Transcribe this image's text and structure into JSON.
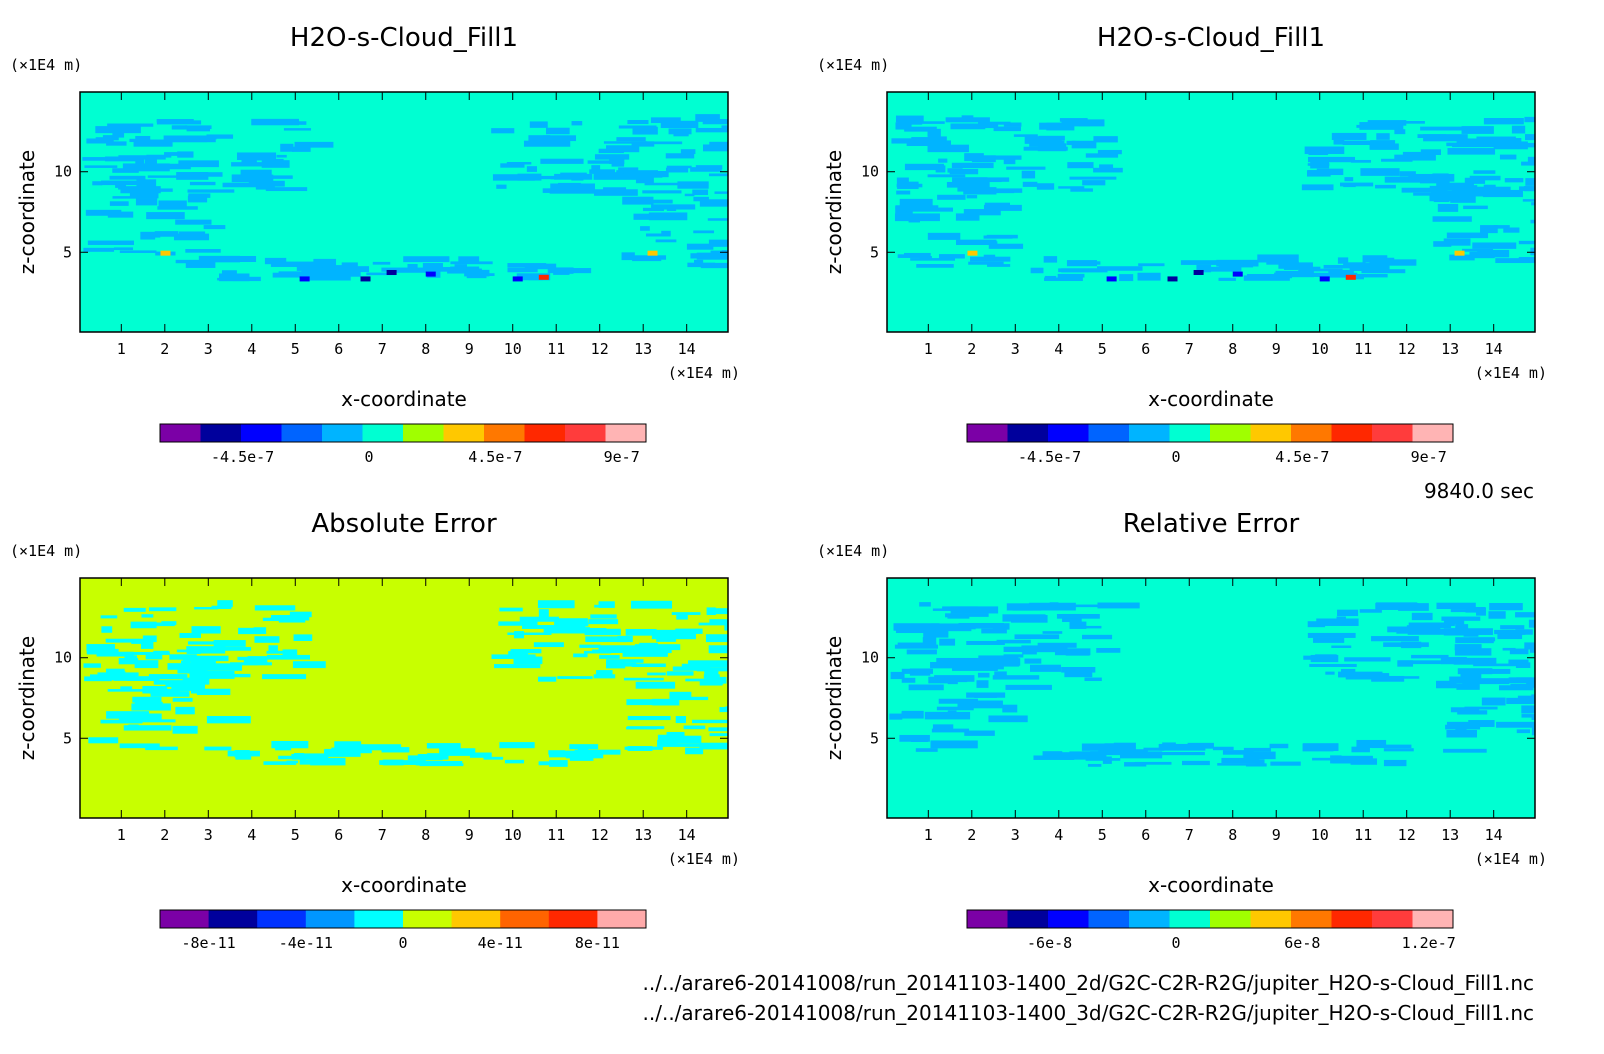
{
  "time_label": "9840.0 sec",
  "file_paths": [
    "../../arare6-20141008/run_20141103-1400_2d/G2C-C2R-R2G/jupiter_H2O-s-Cloud_Fill1.nc",
    "../../arare6-20141008/run_20141103-1400_3d/G2C-C2R-R2G/jupiter_H2O-s-Cloud_Fill1.nc"
  ],
  "chart_data": [
    {
      "type": "heatmap",
      "title": "H2O-s-Cloud_Fill1",
      "xlabel": "x-coordinate",
      "ylabel": "z-coordinate",
      "x_unit": "(×1E4 m)",
      "y_unit": "(×1E4 m)",
      "xlim": [
        0.05,
        14.95
      ],
      "ylim": [
        0.05,
        14.95
      ],
      "x_ticks": [
        "1",
        "2",
        "3",
        "4",
        "5",
        "6",
        "7",
        "8",
        "9",
        "10",
        "11",
        "12",
        "13",
        "14"
      ],
      "y_ticks": [
        "5",
        "10"
      ],
      "colorbar": {
        "colors": [
          "#7b00a6",
          "#00009c",
          "#0000ff",
          "#0064ff",
          "#00b4ff",
          "#00ffd2",
          "#a0ff00",
          "#ffc800",
          "#ff7800",
          "#ff2800",
          "#ff3c3c",
          "#ffb4b4"
        ],
        "tick_labels": [
          "-4.5e-7",
          "0",
          "4.5e-7",
          "9e-7"
        ]
      },
      "background_color": "#00ffd2",
      "feature_color": "#00b4ff"
    },
    {
      "type": "heatmap",
      "title": "H2O-s-Cloud_Fill1",
      "xlabel": "x-coordinate",
      "ylabel": "z-coordinate",
      "x_unit": "(×1E4 m)",
      "y_unit": "(×1E4 m)",
      "xlim": [
        0.05,
        14.95
      ],
      "ylim": [
        0.05,
        14.95
      ],
      "x_ticks": [
        "1",
        "2",
        "3",
        "4",
        "5",
        "6",
        "7",
        "8",
        "9",
        "10",
        "11",
        "12",
        "13",
        "14"
      ],
      "y_ticks": [
        "5",
        "10"
      ],
      "colorbar": {
        "colors": [
          "#7b00a6",
          "#00009c",
          "#0000ff",
          "#0064ff",
          "#00b4ff",
          "#00ffd2",
          "#a0ff00",
          "#ffc800",
          "#ff7800",
          "#ff2800",
          "#ff3c3c",
          "#ffb4b4"
        ],
        "tick_labels": [
          "-4.5e-7",
          "0",
          "4.5e-7",
          "9e-7"
        ]
      },
      "background_color": "#00ffd2",
      "feature_color": "#00b4ff"
    },
    {
      "type": "heatmap",
      "title": "Absolute Error",
      "xlabel": "x-coordinate",
      "ylabel": "z-coordinate",
      "x_unit": "(×1E4 m)",
      "y_unit": "(×1E4 m)",
      "xlim": [
        0.05,
        14.95
      ],
      "ylim": [
        0.05,
        14.95
      ],
      "x_ticks": [
        "1",
        "2",
        "3",
        "4",
        "5",
        "6",
        "7",
        "8",
        "9",
        "10",
        "11",
        "12",
        "13",
        "14"
      ],
      "y_ticks": [
        "5",
        "10"
      ],
      "colorbar": {
        "colors": [
          "#7b00a6",
          "#00009c",
          "#0032ff",
          "#0096ff",
          "#00ffff",
          "#c8ff00",
          "#ffc800",
          "#ff6400",
          "#ff2800",
          "#ffaaaa"
        ],
        "tick_labels": [
          "-8e-11",
          "-4e-11",
          "0",
          "4e-11",
          "8e-11"
        ]
      },
      "background_color": "#c8ff00",
      "feature_color": "#00ffff"
    },
    {
      "type": "heatmap",
      "title": "Relative Error",
      "xlabel": "x-coordinate",
      "ylabel": "z-coordinate",
      "x_unit": "(×1E4 m)",
      "y_unit": "(×1E4 m)",
      "xlim": [
        0.05,
        14.95
      ],
      "ylim": [
        0.05,
        14.95
      ],
      "x_ticks": [
        "1",
        "2",
        "3",
        "4",
        "5",
        "6",
        "7",
        "8",
        "9",
        "10",
        "11",
        "12",
        "13",
        "14"
      ],
      "y_ticks": [
        "5",
        "10"
      ],
      "colorbar": {
        "colors": [
          "#7b00a6",
          "#00009c",
          "#0000ff",
          "#0064ff",
          "#00b4ff",
          "#00ffd2",
          "#a0ff00",
          "#ffc800",
          "#ff7800",
          "#ff2800",
          "#ff3c3c",
          "#ffb4b4"
        ],
        "tick_labels": [
          "-6e-8",
          "0",
          "6e-8",
          "1.2e-7"
        ]
      },
      "background_color": "#00ffd2",
      "feature_color": "#00b4ff"
    }
  ]
}
